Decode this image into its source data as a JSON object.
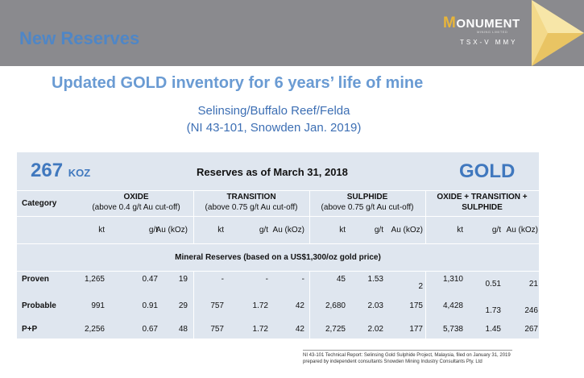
{
  "header": {
    "title": "New Reserves"
  },
  "logo": {
    "word": "ONUMENT",
    "letter": "M",
    "sub": "MINING LIMITED",
    "ticker": "TSX-V MMY"
  },
  "headline": "Updated GOLD inventory for 6 years’ life of mine",
  "subtitle_1": "Selinsing/Buffalo Reef/Felda",
  "subtitle_2": "(NI 43-101, Snowden Jan. 2019)",
  "table": {
    "total_value": "267",
    "total_unit": "KOZ",
    "title": "Reserves as of March 31, 2018",
    "metal": "GOLD",
    "category_label": "Category",
    "groups": [
      {
        "name": "OXIDE",
        "note": "(above 0.4 g/t Au cut-off)"
      },
      {
        "name": "TRANSITION",
        "note": "(above 0.75 g/t Au cut-off)"
      },
      {
        "name": "SULPHIDE",
        "note": "(above 0.75 g/t Au cut-off)"
      },
      {
        "name": "OXIDE + TRANSITION +",
        "note": "SULPHIDE"
      }
    ],
    "units": [
      "kt",
      "g/t",
      "Au (kOz)"
    ],
    "section_title": "Mineral Reserves (based on a US$1,300/oz gold price)",
    "rows": [
      {
        "label": "Proven",
        "values": [
          "1,265",
          "0.47",
          "19",
          "-",
          "-",
          "-",
          "45",
          "1.53",
          "2",
          "1,310",
          "0.51",
          "21"
        ]
      },
      {
        "label": "Probable",
        "values": [
          "991",
          "0.91",
          "29",
          "757",
          "1.72",
          "42",
          "2,680",
          "2.03",
          "175",
          "4,428",
          "1.73",
          "246"
        ]
      },
      {
        "label": "P+P",
        "values": [
          "2,256",
          "0.67",
          "48",
          "757",
          "1.72",
          "42",
          "2,725",
          "2.02",
          "177",
          "5,738",
          "1.45",
          "267"
        ]
      }
    ]
  },
  "footnote": "NI 43-101 Technical Report: Selinsing Gold Sulphide Project, Malaysia, filed on January 31, 2019 prepared by independent consultants Snowden Mining Industry Consultants Pty. Ltd",
  "colors": {
    "header_bg": "#8a8a8e",
    "accent_blue": "#4078be",
    "gold": "#e8b53a",
    "table_bg": "#dfe6ef"
  }
}
